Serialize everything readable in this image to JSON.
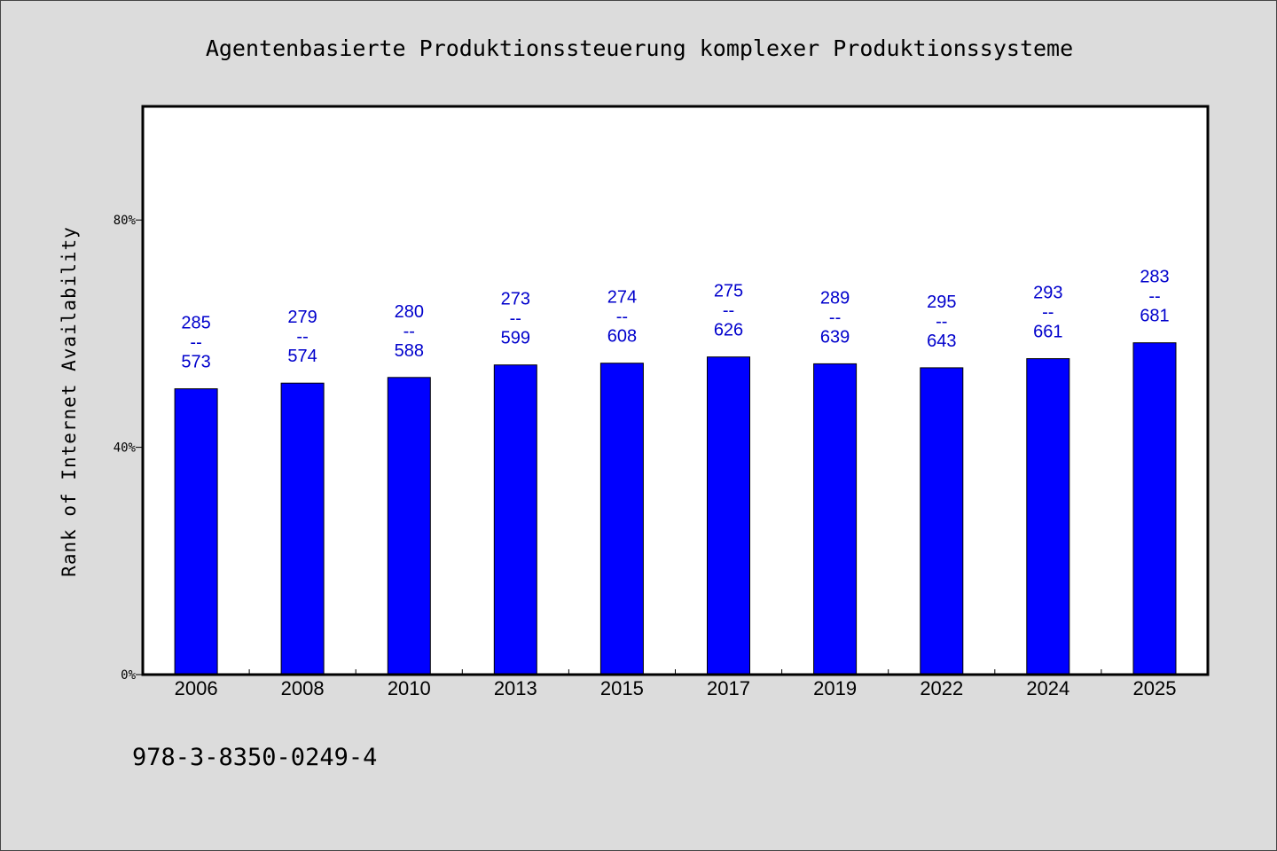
{
  "chart_data": {
    "type": "bar",
    "title": "Agentenbasierte Produktionssteuerung komplexer Produktionssysteme",
    "ylabel": "Rank of Internet Availability",
    "xlabel": "",
    "ylim": [
      0,
      100
    ],
    "yticks": [
      {
        "value": 0,
        "label": "0%"
      },
      {
        "value": 40,
        "label": "40%"
      },
      {
        "value": 80,
        "label": "80%"
      }
    ],
    "categories": [
      "2006",
      "2008",
      "2010",
      "2013",
      "2015",
      "2017",
      "2019",
      "2022",
      "2024",
      "2025"
    ],
    "values": [
      50.3,
      51.3,
      52.3,
      54.5,
      54.8,
      55.9,
      54.7,
      54.0,
      55.6,
      58.4
    ],
    "data_labels": [
      {
        "top": "285",
        "sep": "--",
        "bottom": "573"
      },
      {
        "top": "279",
        "sep": "--",
        "bottom": "574"
      },
      {
        "top": "280",
        "sep": "--",
        "bottom": "588"
      },
      {
        "top": "273",
        "sep": "--",
        "bottom": "599"
      },
      {
        "top": "274",
        "sep": "--",
        "bottom": "608"
      },
      {
        "top": "275",
        "sep": "--",
        "bottom": "626"
      },
      {
        "top": "289",
        "sep": "--",
        "bottom": "639"
      },
      {
        "top": "295",
        "sep": "--",
        "bottom": "643"
      },
      {
        "top": "293",
        "sep": "--",
        "bottom": "661"
      },
      {
        "top": "283",
        "sep": "--",
        "bottom": "681"
      }
    ],
    "bar_color": "#0000ff",
    "label_color": "#0000cc",
    "grid": false,
    "legend": "none"
  },
  "footer": {
    "isbn": "978-3-8350-0249-4"
  },
  "colors": {
    "background": "#dcdcdc",
    "plot_background": "#ffffff"
  }
}
